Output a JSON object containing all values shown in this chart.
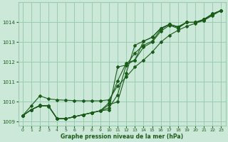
{
  "title": "Graphe pression niveau de la mer (hPa)",
  "background_color": "#cce8d8",
  "grid_color": "#99ccb0",
  "line_color": "#1a5c1a",
  "xlim": [
    -0.5,
    23.5
  ],
  "ylim": [
    1008.8,
    1015.0
  ],
  "yticks": [
    1009,
    1010,
    1011,
    1012,
    1013,
    1014
  ],
  "xticks": [
    0,
    1,
    2,
    3,
    4,
    5,
    6,
    7,
    8,
    9,
    10,
    11,
    12,
    13,
    14,
    15,
    16,
    17,
    18,
    19,
    20,
    21,
    22,
    23
  ],
  "series": [
    [
      1009.3,
      1009.6,
      1009.8,
      1009.8,
      1009.15,
      1009.15,
      1009.25,
      1009.35,
      1009.45,
      1009.55,
      1009.6,
      1011.75,
      1011.85,
      1012.1,
      1012.75,
      1013.0,
      1013.55,
      1013.85,
      1013.7,
      1014.0,
      1014.0,
      1014.1,
      1014.4,
      1014.6
    ],
    [
      1009.3,
      1009.6,
      1009.8,
      1009.8,
      1009.15,
      1009.15,
      1009.25,
      1009.35,
      1009.45,
      1009.55,
      1009.7,
      1010.35,
      1011.85,
      1012.45,
      1012.85,
      1013.05,
      1013.65,
      1013.9,
      1013.75,
      1014.0,
      1014.0,
      1014.15,
      1014.4,
      1014.6
    ],
    [
      1009.3,
      1009.6,
      1009.82,
      1009.78,
      1009.15,
      1009.15,
      1009.25,
      1009.35,
      1009.45,
      1009.55,
      1009.85,
      1010.0,
      1011.45,
      1012.85,
      1013.05,
      1013.25,
      1013.7,
      1013.9,
      1013.77,
      1014.0,
      1014.0,
      1014.15,
      1014.43,
      1014.6
    ],
    [
      1009.3,
      1009.6,
      1009.82,
      1009.78,
      1009.15,
      1009.15,
      1009.25,
      1009.35,
      1009.45,
      1009.55,
      1009.95,
      1011.05,
      1011.95,
      1012.1,
      1013.05,
      1013.25,
      1013.7,
      1013.9,
      1013.78,
      1014.0,
      1014.0,
      1014.15,
      1014.43,
      1014.6
    ]
  ],
  "series_straight": [
    [
      1009.3,
      1009.8,
      1010.3,
      1010.15,
      1010.1,
      1010.08,
      1010.06,
      1010.05,
      1010.05,
      1010.05,
      1010.1,
      1010.8,
      1011.25,
      1011.75,
      1012.1,
      1012.5,
      1013.0,
      1013.35,
      1013.6,
      1013.8,
      1013.95,
      1014.1,
      1014.35,
      1014.6
    ]
  ]
}
